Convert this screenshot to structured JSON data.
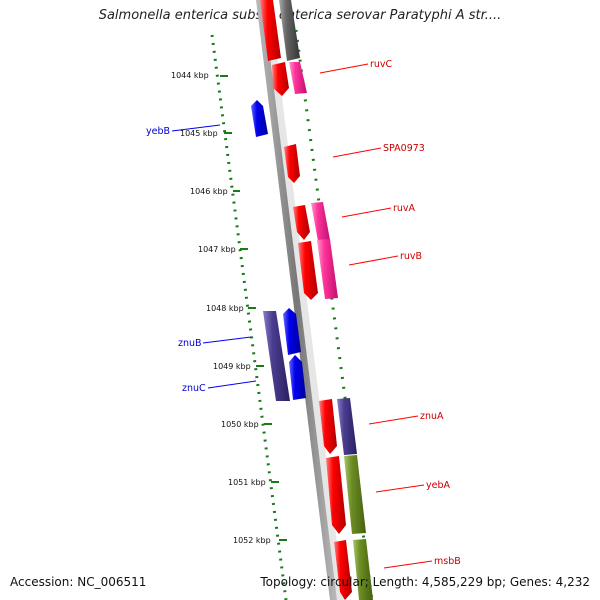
{
  "title": "Salmonella enterica subsp. enterica serovar Paratyphi A str....",
  "footer": {
    "accession": "Accession: NC_006511",
    "summary": "Topology: circular; Length: 4,585,229 bp; Genes: 4,232"
  },
  "colors": {
    "backbone": "#808080",
    "tick_marks": "#1a7a1a",
    "forward_gene": "#ff0000",
    "forward_pink": "#ff3399",
    "reverse_gene": "#0000ee",
    "reverse_purple": "#4a3d8f",
    "olive": "#6b8e23",
    "gray_block": "#666666"
  },
  "scale": {
    "ticks": [
      {
        "label": "1044 kbp"
      },
      {
        "label": "1045 kbp"
      },
      {
        "label": "1046 kbp"
      },
      {
        "label": "1047 kbp"
      },
      {
        "label": "1048 kbp"
      },
      {
        "label": "1049 kbp"
      },
      {
        "label": "1050 kbp"
      },
      {
        "label": "1051 kbp"
      },
      {
        "label": "1052 kbp"
      }
    ]
  },
  "genes": {
    "forward": [
      {
        "name": "ruvC"
      },
      {
        "name": "SPA0973"
      },
      {
        "name": "ruvA"
      },
      {
        "name": "ruvB"
      },
      {
        "name": "znuA"
      },
      {
        "name": "yebA"
      },
      {
        "name": "msbB"
      }
    ],
    "reverse": [
      {
        "name": "yebB"
      },
      {
        "name": "znuB"
      },
      {
        "name": "znuC"
      }
    ]
  }
}
